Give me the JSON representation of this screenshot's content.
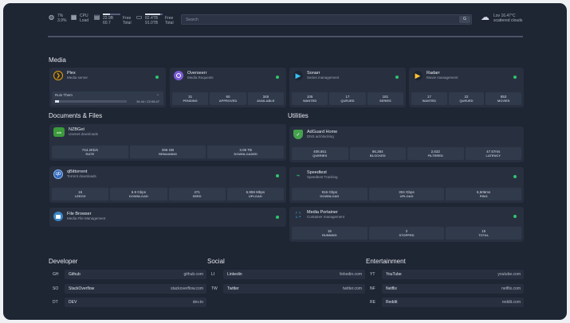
{
  "topbar": {
    "cpu1": {
      "icon": "globe-icon",
      "top": "7%",
      "bottom": "3.9%"
    },
    "cpu2": {
      "top": "CPU",
      "bottom": "Load"
    },
    "ram": {
      "top": "22.9B",
      "bottom": "60.7",
      "label_top": "Free",
      "label_bottom": "Total",
      "fill": 0.4
    },
    "disk": {
      "top": "82.4TB",
      "bottom": "91.0TB",
      "label_top": "Free",
      "label_bottom": "Total",
      "fill": 0.85
    },
    "search_placeholder": "Search",
    "search_button": "G",
    "weather": {
      "temp": "Lov 16.47°C",
      "desc": "scattered clouds"
    }
  },
  "sections": {
    "media": "Media",
    "documents": "Documents & Files",
    "utilities": "Utilities",
    "developer": "Developer",
    "social": "Social",
    "entertainment": "Entertainment"
  },
  "media": {
    "plex": {
      "name": "Plex",
      "sub": "Media server",
      "strip_title": "Ruin Them",
      "strip_time": "34:44 / 22:06:47",
      "progress": 0.06
    },
    "overseerr": {
      "name": "Overseerr",
      "sub": "Media Requests",
      "stats": [
        {
          "v": "31",
          "l": "PENDING"
        },
        {
          "v": "60",
          "l": "APPROVED"
        },
        {
          "v": "345",
          "l": "AVAILABLE"
        }
      ]
    },
    "sonarr": {
      "name": "Sonarr",
      "sub": "Series management",
      "stats": [
        {
          "v": "105",
          "l": "WANTED"
        },
        {
          "v": "17",
          "l": "QUEUED"
        },
        {
          "v": "181",
          "l": "SERIES"
        }
      ]
    },
    "radarr": {
      "name": "Radarr",
      "sub": "Movie management",
      "stats": [
        {
          "v": "17",
          "l": "WANTED"
        },
        {
          "v": "22",
          "l": "QUEUED"
        },
        {
          "v": "853",
          "l": "MOVIES"
        }
      ]
    }
  },
  "documents": {
    "nzbget": {
      "name": "NZBGet",
      "sub": "Usenet downloads",
      "stats": [
        {
          "v": "744.2Kb/s",
          "l": "RATE"
        },
        {
          "v": "266 GB",
          "l": "REMAINING"
        },
        {
          "v": "3.06 TB",
          "l": "DOWNLOADED"
        }
      ]
    },
    "qbittorrent": {
      "name": "qBittorrent",
      "sub": "Torrent downloads",
      "stats": [
        {
          "v": "16",
          "l": "LEECH"
        },
        {
          "v": "6.9 Gbps",
          "l": "DOWNLOAD"
        },
        {
          "v": "471",
          "l": "SEED"
        },
        {
          "v": "6.859 Mbps",
          "l": "UPLOAD"
        }
      ]
    },
    "filebrowser": {
      "name": "File Browser",
      "sub": "Media File Management"
    }
  },
  "utilities": {
    "adguard": {
      "name": "AdGuard Home",
      "sub": "DNS ad-blocking",
      "stats": [
        {
          "v": "408,651",
          "l": "QUERIES"
        },
        {
          "v": "86,384",
          "l": "BLOCKED"
        },
        {
          "v": "2,632",
          "l": "FILTERED"
        },
        {
          "v": "47.57ms",
          "l": "LATENCY"
        }
      ]
    },
    "speedtest": {
      "name": "Speedtest",
      "sub": "Speedtest Tracking",
      "stats": [
        {
          "v": "916 Gbps",
          "l": "DOWNLOAD"
        },
        {
          "v": "304 Gbps",
          "l": "UPLOAD"
        },
        {
          "v": "6,606ms",
          "l": "PING"
        }
      ]
    },
    "portainer": {
      "name": "Media Portainer",
      "sub": "Container management",
      "stats": [
        {
          "v": "15",
          "l": "RUNNING"
        },
        {
          "v": "2",
          "l": "STOPPED"
        },
        {
          "v": "15",
          "l": "TOTAL"
        }
      ]
    }
  },
  "developer": [
    {
      "abbr": "GH",
      "name": "Github",
      "url": "github.com"
    },
    {
      "abbr": "SO",
      "name": "StackOverflow",
      "url": "stackoverflow.com"
    },
    {
      "abbr": "DT",
      "name": "DEV",
      "url": "dev.to"
    }
  ],
  "social": [
    {
      "abbr": "LI",
      "name": "Linkedin",
      "url": "linkedin.com"
    },
    {
      "abbr": "TW",
      "name": "Twitter",
      "url": "twitter.com"
    }
  ],
  "entertainment": [
    {
      "abbr": "YT",
      "name": "YouTube",
      "url": "youtube.com"
    },
    {
      "abbr": "NF",
      "name": "Netflix",
      "url": "netflix.com"
    },
    {
      "abbr": "RE",
      "name": "Reddit",
      "url": "reddit.com"
    }
  ],
  "colors": {
    "status": "#2ec56b",
    "bg": "#1e2533",
    "card": "#283040"
  }
}
